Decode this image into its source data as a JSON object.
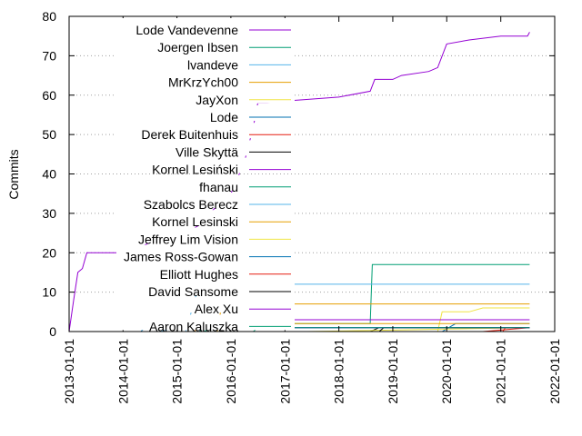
{
  "chart_data": {
    "type": "line",
    "ylabel": "Commits",
    "xlabel": "",
    "ylim": [
      0,
      80
    ],
    "xlim": [
      "2013-01-01",
      "2022-01-01"
    ],
    "y_ticks": [
      "0",
      "10",
      "20",
      "30",
      "40",
      "50",
      "60",
      "70",
      "80"
    ],
    "x_ticks": [
      "2013-01-01",
      "2014-01-01",
      "2015-01-01",
      "2016-01-01",
      "2017-01-01",
      "2018-01-01",
      "2019-01-01",
      "2020-01-01",
      "2021-01-01",
      "2022-01-01"
    ],
    "grid": "horizontal dotted",
    "legend_position": "top-left",
    "series": [
      {
        "name": "Lode Vandevenne",
        "color": "#9400d3",
        "points": [
          [
            "2013-01-01",
            0
          ],
          [
            "2013-02-01",
            8
          ],
          [
            "2013-03-01",
            15
          ],
          [
            "2013-04-01",
            16
          ],
          [
            "2013-05-01",
            20
          ],
          [
            "2014-01-01",
            20
          ],
          [
            "2014-06-01",
            22
          ],
          [
            "2014-09-01",
            24
          ],
          [
            "2015-01-01",
            25
          ],
          [
            "2015-03-01",
            25
          ],
          [
            "2015-06-01",
            27
          ],
          [
            "2015-10-01",
            32
          ],
          [
            "2016-01-01",
            35
          ],
          [
            "2016-04-01",
            43
          ],
          [
            "2016-06-01",
            52
          ],
          [
            "2016-07-01",
            58
          ],
          [
            "2016-09-01",
            58
          ],
          [
            "2017-01-01",
            58.5
          ],
          [
            "2018-01-01",
            59.5
          ],
          [
            "2018-08-01",
            61
          ],
          [
            "2018-09-01",
            64
          ],
          [
            "2019-01-01",
            64
          ],
          [
            "2019-03-01",
            65
          ],
          [
            "2019-09-01",
            66
          ],
          [
            "2019-11-01",
            67
          ],
          [
            "2020-01-01",
            73
          ],
          [
            "2020-06-01",
            74
          ],
          [
            "2021-01-01",
            75
          ],
          [
            "2021-07-01",
            75
          ],
          [
            "2021-07-15",
            76
          ]
        ]
      },
      {
        "name": "Joergen Ibsen",
        "color": "#009e73",
        "points": [
          [
            "2015-07-01",
            0
          ],
          [
            "2015-09-01",
            1
          ],
          [
            "2016-01-01",
            1
          ],
          [
            "2016-06-01",
            2
          ],
          [
            "2018-08-01",
            2
          ],
          [
            "2018-08-15",
            17
          ],
          [
            "2021-07-15",
            17
          ]
        ]
      },
      {
        "name": "lvandeve",
        "color": "#56b4e9",
        "points": [
          [
            "2015-03-01",
            0
          ],
          [
            "2015-06-01",
            12
          ],
          [
            "2021-07-15",
            12
          ]
        ]
      },
      {
        "name": "MrKrzYch00",
        "color": "#e69f00",
        "points": [
          [
            "2015-10-01",
            0
          ],
          [
            "2015-11-01",
            7
          ],
          [
            "2021-07-15",
            7
          ]
        ]
      },
      {
        "name": "JayXon",
        "color": "#f0e442",
        "points": [
          [
            "2019-11-01",
            0
          ],
          [
            "2019-12-01",
            5
          ],
          [
            "2020-06-01",
            5
          ],
          [
            "2020-09-01",
            6
          ],
          [
            "2021-07-15",
            6
          ]
        ]
      },
      {
        "name": "Lode",
        "color": "#0072b2",
        "points": [
          [
            "2019-12-01",
            0
          ],
          [
            "2020-03-01",
            2
          ],
          [
            "2021-07-15",
            2
          ]
        ]
      },
      {
        "name": "Derek Buitenhuis",
        "color": "#e51e10",
        "points": [
          [
            "2020-09-01",
            0
          ],
          [
            "2021-07-15",
            1
          ]
        ]
      },
      {
        "name": "Ville Skyttä",
        "color": "#000000",
        "points": [
          [
            "2018-08-01",
            0
          ],
          [
            "2018-10-01",
            1
          ],
          [
            "2021-07-15",
            1
          ]
        ]
      },
      {
        "name": "Kornel Lesiński",
        "color": "#9400d3",
        "points": [
          [
            "2015-05-01",
            0
          ],
          [
            "2015-06-01",
            3
          ],
          [
            "2021-07-15",
            3
          ]
        ]
      },
      {
        "name": "fhanau",
        "color": "#009e73",
        "points": [
          [
            "2016-06-01",
            0
          ],
          [
            "2016-07-01",
            1
          ],
          [
            "2021-07-15",
            1
          ]
        ]
      },
      {
        "name": "Szabolcs Berecz",
        "color": "#56b4e9",
        "points": [
          [
            "2014-09-01",
            0
          ],
          [
            "2015-01-01",
            1
          ],
          [
            "2021-07-15",
            1
          ]
        ]
      },
      {
        "name": "Kornel Lesinski",
        "color": "#e69f00",
        "points": [
          [
            "2015-05-01",
            0
          ],
          [
            "2015-06-01",
            2
          ],
          [
            "2021-07-15",
            2
          ]
        ]
      },
      {
        "name": "Jeffrey Lim  Vision",
        "color": "#f0e442",
        "points": [
          [
            "2017-06-01",
            0
          ],
          [
            "2021-07-15",
            1
          ]
        ]
      },
      {
        "name": "James Ross-Gowan",
        "color": "#0072b2",
        "points": [
          [
            "2014-05-01",
            0
          ],
          [
            "2014-06-01",
            1
          ],
          [
            "2021-07-15",
            1
          ]
        ]
      },
      {
        "name": "Elliott Hughes",
        "color": "#e51e10",
        "points": [
          [
            "2021-01-15",
            0
          ],
          [
            "2021-02-01",
            1
          ],
          [
            "2021-07-15",
            1
          ]
        ]
      },
      {
        "name": "David Sansome",
        "color": "#000000",
        "points": [
          [
            "2018-10-01",
            0
          ],
          [
            "2018-11-01",
            1
          ],
          [
            "2021-07-15",
            1
          ]
        ]
      },
      {
        "name": "Alex Xu",
        "color": "#9400d3",
        "points": [
          [
            "2015-06-01",
            0
          ],
          [
            "2015-07-01",
            1
          ],
          [
            "2021-07-15",
            1
          ]
        ]
      },
      {
        "name": "Aaron Kaluszka",
        "color": "#009e73",
        "points": [
          [
            "2015-06-01",
            0
          ],
          [
            "2015-07-01",
            1
          ],
          [
            "2021-07-15",
            1
          ]
        ]
      }
    ]
  }
}
